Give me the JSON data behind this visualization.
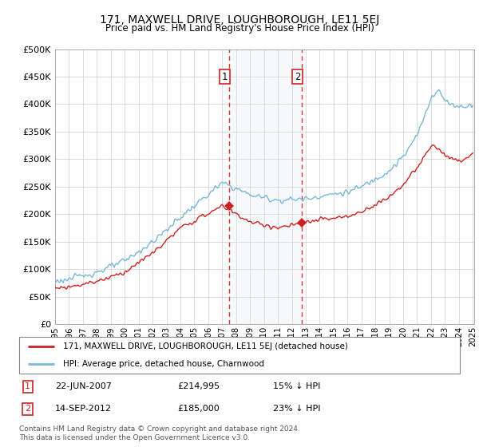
{
  "title": "171, MAXWELL DRIVE, LOUGHBOROUGH, LE11 5EJ",
  "subtitle": "Price paid vs. HM Land Registry's House Price Index (HPI)",
  "ylabel_ticks": [
    "£0",
    "£50K",
    "£100K",
    "£150K",
    "£200K",
    "£250K",
    "£300K",
    "£350K",
    "£400K",
    "£450K",
    "£500K"
  ],
  "ytick_values": [
    0,
    50000,
    100000,
    150000,
    200000,
    250000,
    300000,
    350000,
    400000,
    450000,
    500000
  ],
  "ylim": [
    0,
    500000
  ],
  "hpi_color": "#7ab8d9",
  "price_color": "#cc2222",
  "marker1_label": "1",
  "marker2_label": "2",
  "marker1_price": 214995,
  "marker2_price": 185000,
  "legend_line1": "171, MAXWELL DRIVE, LOUGHBOROUGH, LE11 5EJ (detached house)",
  "legend_line2": "HPI: Average price, detached house, Charnwood",
  "footnote": "Contains HM Land Registry data © Crown copyright and database right 2024.\nThis data is licensed under the Open Government Licence v3.0.",
  "background_color": "#ffffff",
  "grid_color": "#cccccc",
  "shade_color": "#daeaf5"
}
